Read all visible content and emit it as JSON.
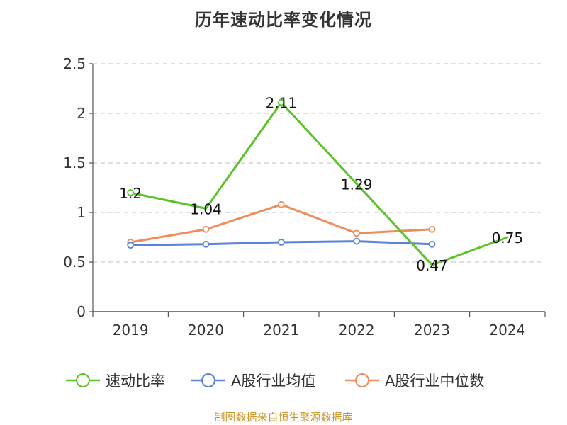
{
  "chart_data": {
    "type": "line",
    "title": "历年速动比率变化情况",
    "categories": [
      "2019",
      "2020",
      "2021",
      "2022",
      "2023",
      "2024"
    ],
    "ylim": [
      0,
      2.5
    ],
    "yticks": [
      0,
      0.5,
      1,
      1.5,
      2,
      2.5
    ],
    "ytick_labels": [
      "0",
      "0.5",
      "1",
      "1.5",
      "2",
      "2.5"
    ],
    "grid": true,
    "legend_position": "bottom",
    "series": [
      {
        "name": "速动比率",
        "color": "#5cc22a",
        "values": [
          1.2,
          1.04,
          2.11,
          1.29,
          0.47,
          0.75
        ],
        "labels": [
          "1.2",
          "1.04",
          "2.11",
          "1.29",
          "0.47",
          "0.75"
        ],
        "show_labels": true,
        "markers": [
          true,
          false,
          true,
          false,
          false,
          false
        ]
      },
      {
        "name": "A股行业均值",
        "color": "#5b84d9",
        "values": [
          0.67,
          0.68,
          0.7,
          0.71,
          0.68,
          null
        ],
        "show_labels": false,
        "markers": [
          true,
          true,
          true,
          true,
          true,
          false
        ]
      },
      {
        "name": "A股行业中位数",
        "color": "#f08c5a",
        "values": [
          0.7,
          0.83,
          1.08,
          0.79,
          0.83,
          null
        ],
        "show_labels": false,
        "markers": [
          true,
          true,
          true,
          true,
          true,
          false
        ]
      }
    ]
  },
  "source_note": "制图数据来自恒生聚源数据库"
}
